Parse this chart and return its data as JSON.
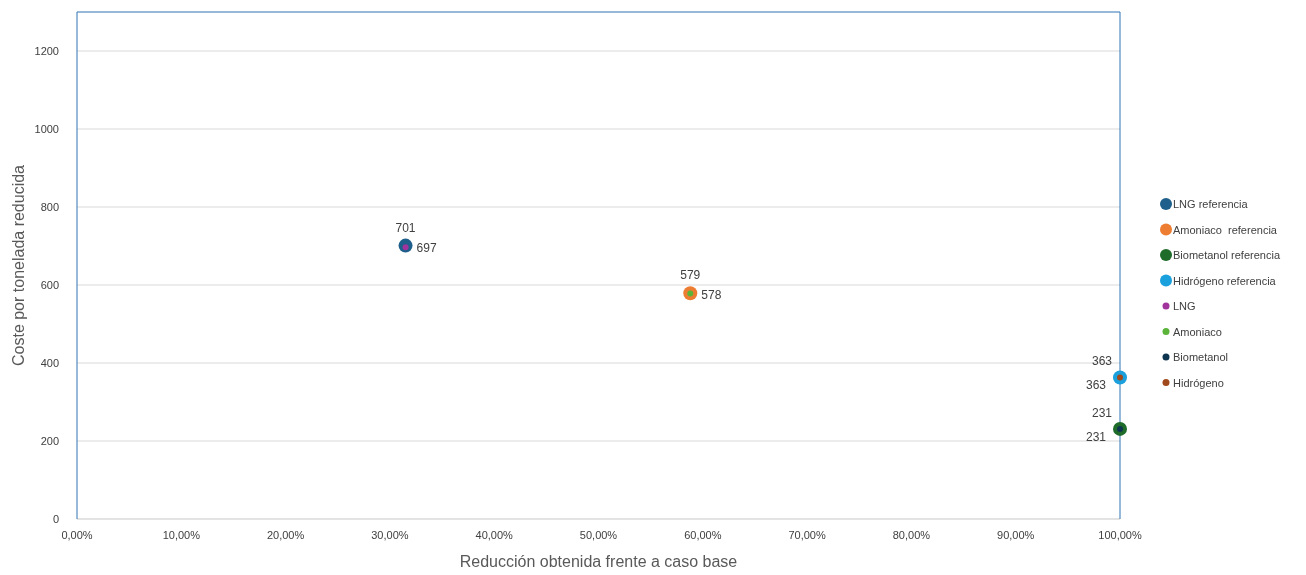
{
  "chart_data": {
    "type": "scatter",
    "xlabel": "Reducción obtenida frente a caso base",
    "ylabel": "Coste por tonelada reducida",
    "xlim": [
      0,
      1
    ],
    "xticks": [
      {
        "value": 0,
        "label": "0,00%"
      },
      {
        "value": 0.1,
        "label": "10,00%"
      },
      {
        "value": 0.2,
        "label": "20,00%"
      },
      {
        "value": 0.3,
        "label": "30,00%"
      },
      {
        "value": 0.4,
        "label": "40,00%"
      },
      {
        "value": 0.5,
        "label": "50,00%"
      },
      {
        "value": 0.6,
        "label": "60,00%"
      },
      {
        "value": 0.7,
        "label": "70,00%"
      },
      {
        "value": 0.8,
        "label": "80,00%"
      },
      {
        "value": 0.9,
        "label": "90,00%"
      },
      {
        "value": 1,
        "label": "100,00%"
      }
    ],
    "ylim": [
      0,
      1300
    ],
    "yticks": [
      0,
      200,
      400,
      600,
      800,
      1000,
      1200
    ],
    "grid": "y",
    "legend": "right",
    "marker": "circle",
    "data_labels": true,
    "series": [
      {
        "name": "LNG referencia",
        "color": "#1f5f8b",
        "x": [
          0.315
        ],
        "values": [
          701
        ]
      },
      {
        "name": "Amoniaco  referencia",
        "color": "#ed7d31",
        "x": [
          0.588
        ],
        "values": [
          579
        ]
      },
      {
        "name": "Biometanol referencia",
        "color": "#1e6b2a",
        "x": [
          1.0
        ],
        "values": [
          231
        ]
      },
      {
        "name": "Hidrógeno referencia",
        "color": "#1aa0dc",
        "x": [
          1.0
        ],
        "values": [
          363
        ]
      },
      {
        "name": "LNG",
        "color": "#a0339c",
        "x": [
          0.315
        ],
        "values": [
          697
        ]
      },
      {
        "name": "Amoniaco",
        "color": "#5bb33a",
        "x": [
          0.588
        ],
        "values": [
          578
        ]
      },
      {
        "name": "Biometanol",
        "color": "#0e3550",
        "x": [
          1.0
        ],
        "values": [
          231
        ]
      },
      {
        "name": "Hidrógeno",
        "color": "#a0491a",
        "x": [
          1.0
        ],
        "values": [
          363
        ]
      }
    ]
  }
}
